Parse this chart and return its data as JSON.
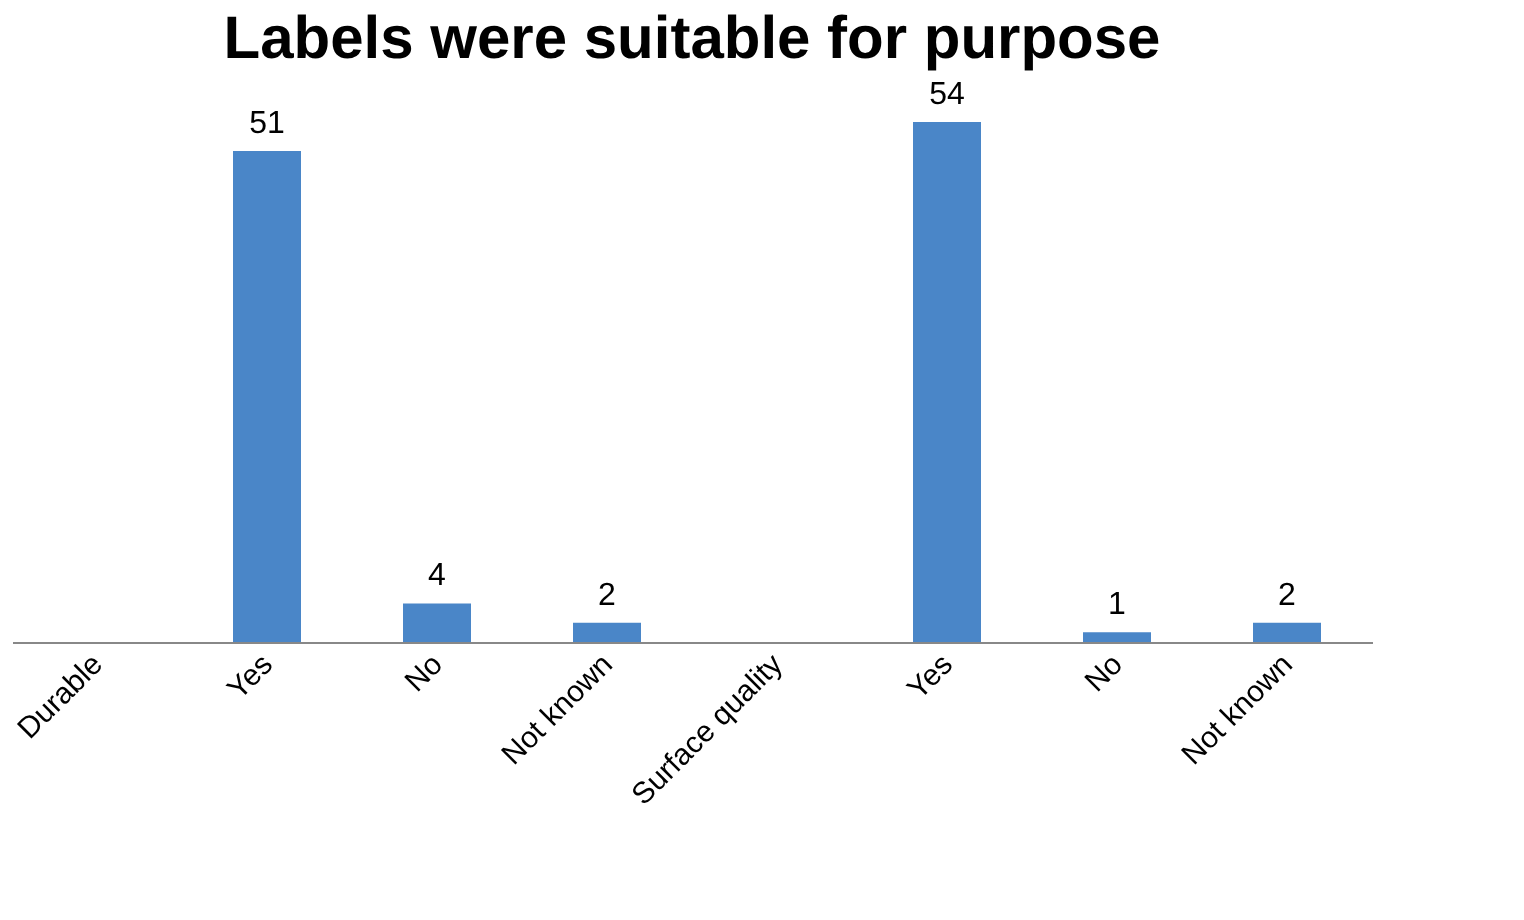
{
  "chart_data": {
    "type": "bar",
    "title": "Labels were suitable for purpose",
    "categories": [
      "Durable",
      "Yes",
      "No",
      "Not known",
      "Surface quality",
      "Yes",
      "No",
      "Not known"
    ],
    "values": [
      null,
      51,
      4,
      2,
      null,
      54,
      1,
      2
    ],
    "color": "#4a86c8",
    "data_labels": true
  }
}
